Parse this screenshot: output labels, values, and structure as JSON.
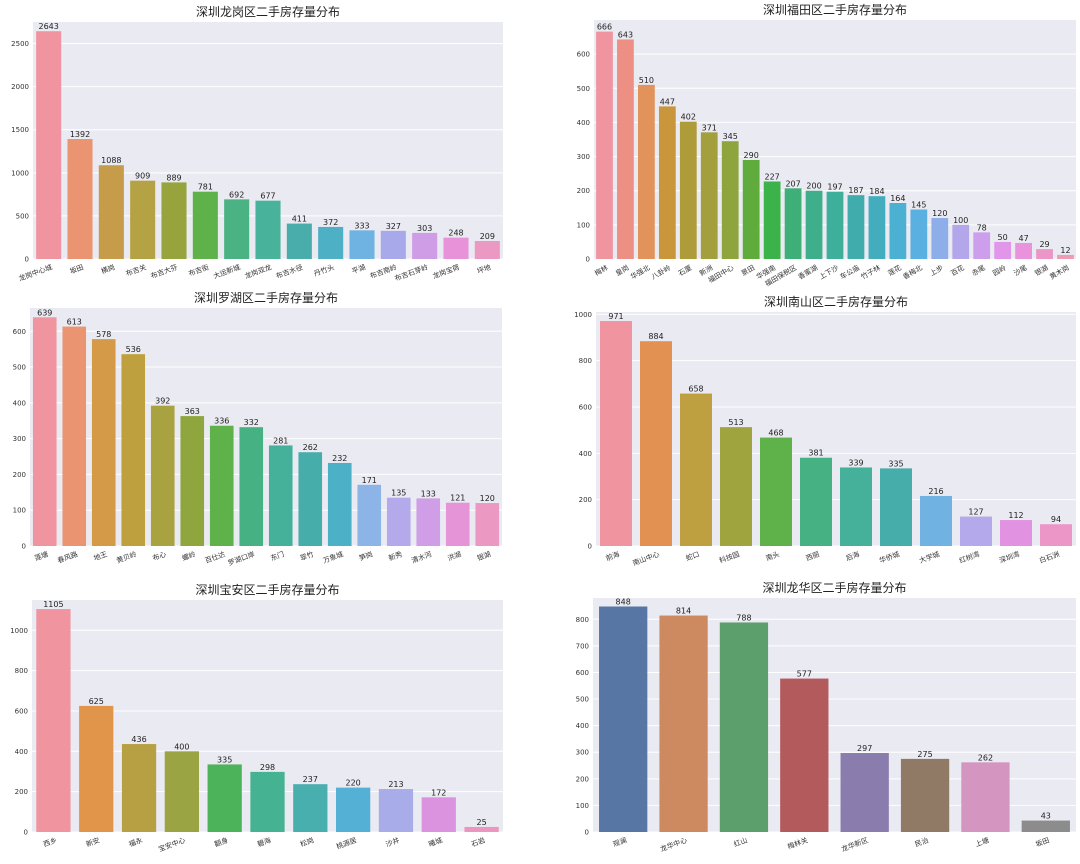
{
  "chart_data": [
    {
      "type": "bar",
      "title": "深圳龙岗区二手房存量分布",
      "categories": [
        "龙岗中心城",
        "坂田",
        "横岗",
        "布吉关",
        "布吉大芬",
        "布吉街",
        "大运新城",
        "龙岗双龙",
        "布吉水径",
        "丹竹头",
        "平湖",
        "布吉南岭",
        "布吉石芽岭",
        "龙岗宝荷",
        "坪地"
      ],
      "values": [
        2643,
        1392,
        1088,
        909,
        889,
        781,
        692,
        677,
        411,
        372,
        333,
        327,
        303,
        248,
        209
      ],
      "yticks": [
        0,
        500,
        1000,
        1500,
        2000,
        2500
      ],
      "ylim": [
        0,
        2750
      ],
      "xlabel_rotation": -20,
      "colors": [
        "#f0959f",
        "#eb9472",
        "#c69b4a",
        "#b5a245",
        "#97a43e",
        "#5fb14a",
        "#4bb283",
        "#48b39a",
        "#49aeab",
        "#4db0c4",
        "#6fb3e2",
        "#a7a9ea",
        "#cf9de6",
        "#e892d9",
        "#eb98c3"
      ]
    },
    {
      "type": "bar",
      "title": "深圳福田区二手房存量分布",
      "categories": [
        "梅林",
        "皇岗",
        "华强北",
        "八卦岭",
        "石厦",
        "新洲",
        "福田中心",
        "景田",
        "华强南",
        "福田保税区",
        "香蜜湖",
        "上下沙",
        "车公庙",
        "竹子林",
        "莲花",
        "香梅北",
        "上步",
        "百花",
        "赤尾",
        "园岭",
        "沙尾",
        "银湖",
        "黄木岗"
      ],
      "values": [
        666,
        643,
        510,
        447,
        402,
        371,
        345,
        290,
        227,
        207,
        200,
        197,
        187,
        184,
        164,
        145,
        120,
        100,
        78,
        50,
        47,
        29,
        12
      ],
      "yticks": [
        0,
        100,
        200,
        300,
        400,
        500,
        600
      ],
      "ylim": [
        0,
        700
      ],
      "xlabel_rotation": -30,
      "colors": [
        "#f0959f",
        "#ed8f83",
        "#e2935b",
        "#c9963c",
        "#ae9c3a",
        "#a29f3c",
        "#8da53c",
        "#5fab3c",
        "#3bb34a",
        "#3eb077",
        "#3eae8b",
        "#3eaf9b",
        "#40acac",
        "#43adbe",
        "#4cb0d3",
        "#5ab0e0",
        "#8eaeea",
        "#b3a6ea",
        "#cc9eeb",
        "#e196ea",
        "#e893dc",
        "#eb96c6",
        "#f09ab4"
      ]
    },
    {
      "type": "bar",
      "title": "深圳罗湖区二手房存量分布",
      "categories": [
        "莲塘",
        "春风路",
        "地王",
        "黄贝岭",
        "布心",
        "螺岭",
        "百仕达",
        "罗湖口岸",
        "东门",
        "翠竹",
        "万象城",
        "笋岗",
        "新秀",
        "清水河",
        "洪湖",
        "银湖"
      ],
      "values": [
        639,
        613,
        578,
        536,
        392,
        363,
        336,
        332,
        281,
        262,
        232,
        171,
        135,
        133,
        121,
        120
      ],
      "yticks": [
        0,
        100,
        200,
        300,
        400,
        500,
        600
      ],
      "ylim": [
        0,
        665
      ],
      "xlabel_rotation": -20,
      "colors": [
        "#f0959f",
        "#eb9472",
        "#d49a48",
        "#bfa03f",
        "#a8a340",
        "#8fa63f",
        "#5fb14a",
        "#46b283",
        "#45b19a",
        "#46adab",
        "#4cb0c6",
        "#8cb4e6",
        "#b4a9ea",
        "#d09ee6",
        "#e694d8",
        "#eb98c3"
      ]
    },
    {
      "type": "bar",
      "title": "深圳南山区二手房存量分布",
      "categories": [
        "前海",
        "南山中心",
        "蛇口",
        "科技园",
        "南头",
        "西丽",
        "后海",
        "华侨城",
        "大学城",
        "红树湾",
        "深圳湾",
        "白石洲"
      ],
      "values": [
        971,
        884,
        658,
        513,
        468,
        381,
        339,
        335,
        216,
        127,
        112,
        94
      ],
      "yticks": [
        0,
        200,
        400,
        600,
        800,
        1000
      ],
      "ylim": [
        0,
        1010
      ],
      "xlabel_rotation": -20,
      "colors": [
        "#f0959f",
        "#e39152",
        "#bfa041",
        "#9fa43e",
        "#5fb14a",
        "#46b283",
        "#45b19a",
        "#46adab",
        "#70b2e2",
        "#b4a9ea",
        "#e192e0",
        "#ec95c7"
      ]
    },
    {
      "type": "bar",
      "title": "深圳宝安区二手房存量分布",
      "categories": [
        "西乡",
        "新安",
        "福永",
        "宝安中心",
        "翻身",
        "碧海",
        "松岗",
        "桃源居",
        "沙井",
        "曦城",
        "石岩"
      ],
      "values": [
        1105,
        625,
        436,
        400,
        335,
        298,
        237,
        220,
        213,
        172,
        25
      ],
      "yticks": [
        0,
        200,
        400,
        600,
        800,
        1000
      ],
      "ylim": [
        0,
        1150
      ],
      "xlabel_rotation": -20,
      "colors": [
        "#f0959f",
        "#e0954a",
        "#b7a043",
        "#9aa442",
        "#4db35a",
        "#45b291",
        "#48aeae",
        "#54b0d4",
        "#a8ace9",
        "#db93e0",
        "#ec95c0"
      ]
    },
    {
      "type": "bar",
      "title": "深圳龙华区二手房存量分布",
      "categories": [
        "观澜",
        "龙华中心",
        "红山",
        "梅林关",
        "龙华新区",
        "民治",
        "上塘",
        "坂田"
      ],
      "values": [
        848,
        814,
        788,
        577,
        297,
        275,
        262,
        43
      ],
      "yticks": [
        0,
        100,
        200,
        300,
        400,
        500,
        600,
        700,
        800
      ],
      "ylim": [
        0,
        880
      ],
      "xlabel_rotation": -20,
      "colors": [
        "#5876a3",
        "#cd8a60",
        "#5c9e6c",
        "#b35a5c",
        "#8a7cac",
        "#917a65",
        "#d496c1",
        "#8c8c8c"
      ]
    }
  ]
}
